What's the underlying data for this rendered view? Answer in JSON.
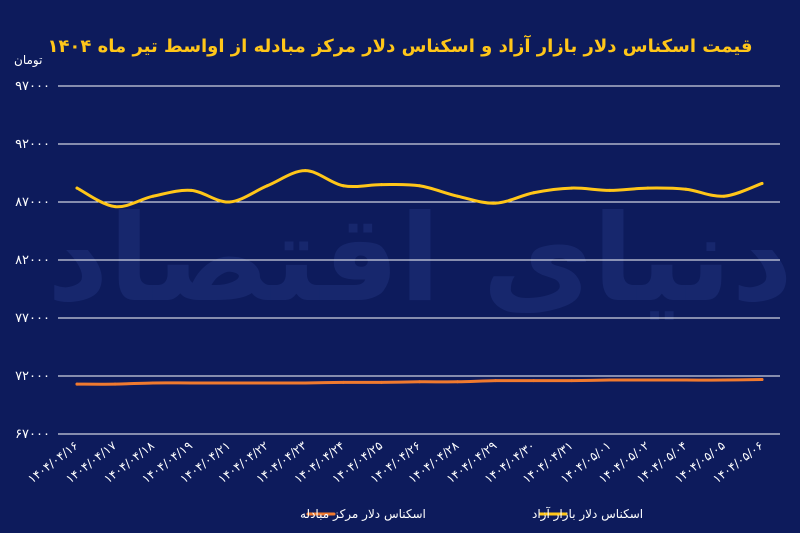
{
  "chart_data": {
    "type": "line",
    "title": "قیمت اسکناس دلار بازار آزاد و اسکناس دلار مرکز مبادله از اواسط تیر ماه ۱۴۰۴",
    "ylabel": "تومان",
    "xlabel": "",
    "ylim": [
      67000,
      97000
    ],
    "yticks": [
      67000,
      72000,
      77000,
      82000,
      87000,
      92000,
      97000
    ],
    "ytick_labels": [
      "۶۷۰۰۰",
      "۷۲۰۰۰",
      "۷۷۰۰۰",
      "۸۲۰۰۰",
      "۸۷۰۰۰",
      "۹۲۰۰۰",
      "۹۷۰۰۰"
    ],
    "categories": [
      "۱۴۰۴/۰۴/۱۶",
      "۱۴۰۴/۰۴/۱۷",
      "۱۴۰۴/۰۴/۱۸",
      "۱۴۰۴/۰۴/۱۹",
      "۱۴۰۴/۰۴/۲۱",
      "۱۴۰۴/۰۴/۲۲",
      "۱۴۰۴/۰۴/۲۳",
      "۱۴۰۴/۰۴/۲۴",
      "۱۴۰۴/۰۴/۲۵",
      "۱۴۰۴/۰۴/۲۶",
      "۱۴۰۴/۰۴/۲۸",
      "۱۴۰۴/۰۴/۲۹",
      "۱۴۰۴/۰۴/۳۰",
      "۱۴۰۴/۰۴/۳۱",
      "۱۴۰۴/۰۵/۰۱",
      "۱۴۰۴/۰۵/۰۲",
      "۱۴۰۴/۰۵/۰۴",
      "۱۴۰۴/۰۵/۰۵",
      "۱۴۰۴/۰۵/۰۶"
    ],
    "grid": "horizontal",
    "legend_position": "bottom",
    "series": [
      {
        "name": "اسکناس دلار بازار آزاد",
        "color": "#ffc619",
        "values": [
          88200,
          86600,
          87500,
          88000,
          87000,
          88400,
          89700,
          88400,
          88500,
          88400,
          87500,
          86900,
          87800,
          88200,
          88000,
          88200,
          88100,
          87500,
          88600
        ]
      },
      {
        "name": "اسکناس دلار مرکز مبادله",
        "color": "#f07a2f",
        "values": [
          71300,
          71300,
          71400,
          71400,
          71400,
          71400,
          71400,
          71450,
          71450,
          71500,
          71500,
          71600,
          71600,
          71600,
          71650,
          71650,
          71650,
          71650,
          71700
        ]
      }
    ]
  },
  "watermark": "دنیای اقتصاد"
}
